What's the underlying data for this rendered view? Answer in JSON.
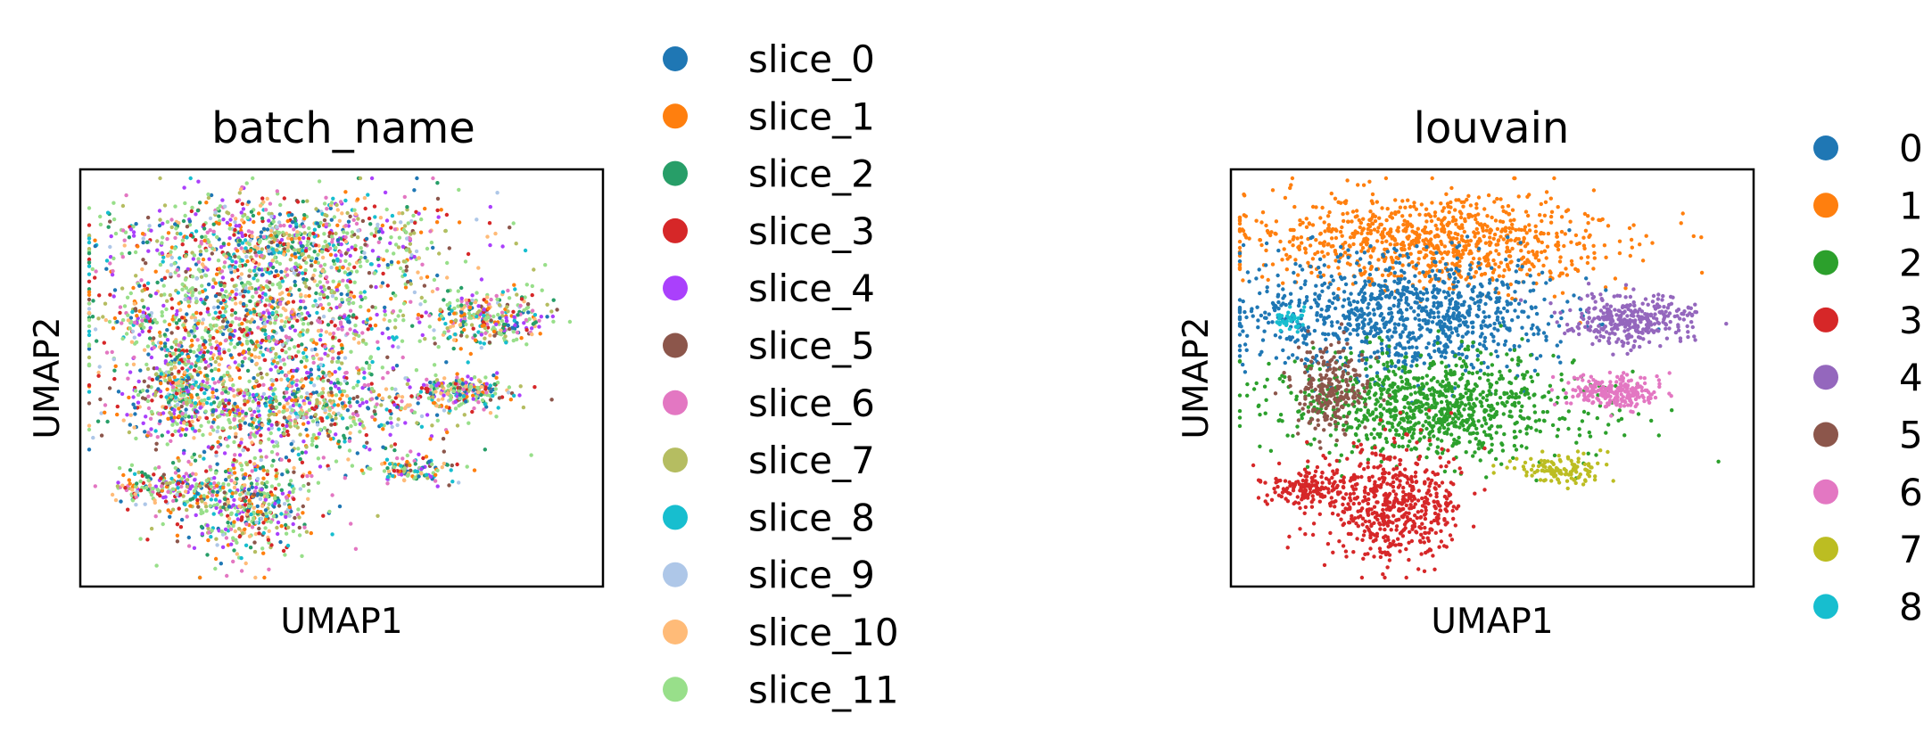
{
  "chart_data": [
    {
      "type": "scatter",
      "title": "batch_name",
      "xlabel": "UMAP1",
      "ylabel": "UMAP2",
      "ticks": "none",
      "legend_placement": "right, outside plot",
      "categories": [
        "slice_0",
        "slice_1",
        "slice_2",
        "slice_3",
        "slice_4",
        "slice_5",
        "slice_6",
        "slice_7",
        "slice_8",
        "slice_9",
        "slice_10",
        "slice_11"
      ],
      "colors": [
        "#1f77b4",
        "#ff7f0e",
        "#279e68",
        "#d62728",
        "#aa40fc",
        "#8c564b",
        "#e377c2",
        "#b5bd61",
        "#17becf",
        "#aec7e8",
        "#ffbb78",
        "#98df8a"
      ],
      "note_layout": "cells from all slices intermixed across the whole embedding"
    },
    {
      "type": "scatter",
      "title": "louvain",
      "xlabel": "UMAP1",
      "ylabel": "UMAP2",
      "ticks": "none",
      "legend_placement": "right, outside plot",
      "categories": [
        "0",
        "1",
        "2",
        "3",
        "4",
        "5",
        "6",
        "7",
        "8"
      ],
      "colors": [
        "#1f77b4",
        "#ff7f0e",
        "#2ca02c",
        "#d62728",
        "#9467bd",
        "#8c564b",
        "#e377c2",
        "#bcbd22",
        "#17becf"
      ]
    }
  ]
}
